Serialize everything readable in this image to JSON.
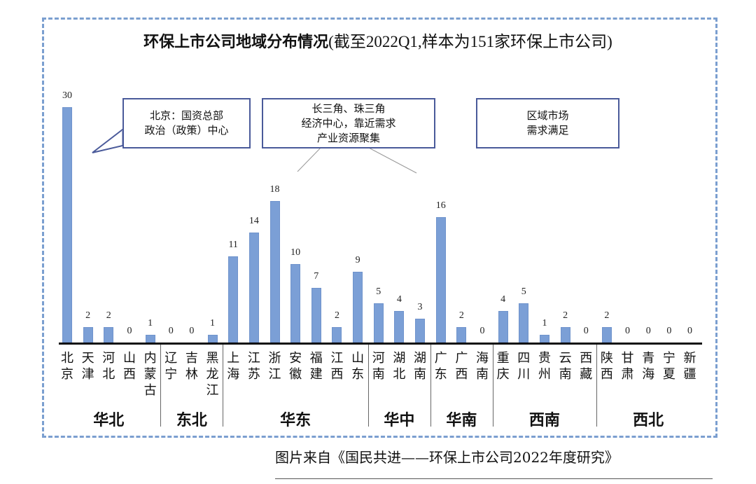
{
  "title": {
    "main": "环保上市公司地域分布情况",
    "sub": "(截至2022Q1,样本为151家环保上市公司)"
  },
  "callouts": [
    {
      "lines": [
        "北京：国资总部",
        "政治（政策）中心"
      ]
    },
    {
      "lines": [
        "长三角、珠三角",
        "经济中心，靠近需求",
        "产业资源聚集"
      ]
    },
    {
      "lines": [
        "区域市场",
        "需求满足"
      ]
    }
  ],
  "caption": "图片来自《国民共进——环保上市公司2022年度研究》",
  "chart_data": {
    "type": "bar",
    "title": "环保上市公司地域分布情况(截至2022Q1,样本为151家环保上市公司)",
    "xlabel": "",
    "ylabel": "",
    "ylim": [
      0,
      30
    ],
    "grid": false,
    "legend": null,
    "bar_color": "#7b9fd6",
    "categories": [
      "北京",
      "天津",
      "河北",
      "山西",
      "内蒙古",
      "辽宁",
      "吉林",
      "黑龙江",
      "上海",
      "江苏",
      "浙江",
      "安徽",
      "福建",
      "江西",
      "山东",
      "河南",
      "湖北",
      "湖南",
      "广东",
      "广西",
      "海南",
      "重庆",
      "四川",
      "贵州",
      "云南",
      "西藏",
      "陕西",
      "甘肃",
      "青海",
      "宁夏",
      "新疆"
    ],
    "category_lines": [
      [
        "北",
        "京"
      ],
      [
        "天",
        "津"
      ],
      [
        "河",
        "北"
      ],
      [
        "山",
        "西"
      ],
      [
        "内",
        "蒙",
        "古"
      ],
      [
        "辽",
        "宁"
      ],
      [
        "吉",
        "林"
      ],
      [
        "黑",
        "龙",
        "江"
      ],
      [
        "上",
        "海"
      ],
      [
        "江",
        "苏"
      ],
      [
        "浙",
        "江"
      ],
      [
        "安",
        "徽"
      ],
      [
        "福",
        "建"
      ],
      [
        "江",
        "西"
      ],
      [
        "山",
        "东"
      ],
      [
        "河",
        "南"
      ],
      [
        "湖",
        "北"
      ],
      [
        "湖",
        "南"
      ],
      [
        "广",
        "东"
      ],
      [
        "广",
        "西"
      ],
      [
        "海",
        "南"
      ],
      [
        "重",
        "庆"
      ],
      [
        "四",
        "川"
      ],
      [
        "贵",
        "州"
      ],
      [
        "云",
        "南"
      ],
      [
        "西",
        "藏"
      ],
      [
        "陕",
        "西"
      ],
      [
        "甘",
        "肃"
      ],
      [
        "青",
        "海"
      ],
      [
        "宁",
        "夏"
      ],
      [
        "新",
        "疆"
      ]
    ],
    "values": [
      30,
      2,
      2,
      0,
      1,
      0,
      0,
      1,
      11,
      14,
      18,
      10,
      7,
      2,
      9,
      5,
      4,
      3,
      16,
      2,
      0,
      4,
      5,
      1,
      2,
      0,
      2,
      0,
      0,
      0,
      0
    ],
    "regions": [
      {
        "name": "华北",
        "start": 0,
        "count": 5
      },
      {
        "name": "东北",
        "start": 5,
        "count": 3
      },
      {
        "name": "华东",
        "start": 8,
        "count": 7
      },
      {
        "name": "华中",
        "start": 15,
        "count": 3
      },
      {
        "name": "华南",
        "start": 18,
        "count": 3
      },
      {
        "name": "西南",
        "start": 21,
        "count": 5
      },
      {
        "name": "西北",
        "start": 26,
        "count": 5
      }
    ]
  }
}
